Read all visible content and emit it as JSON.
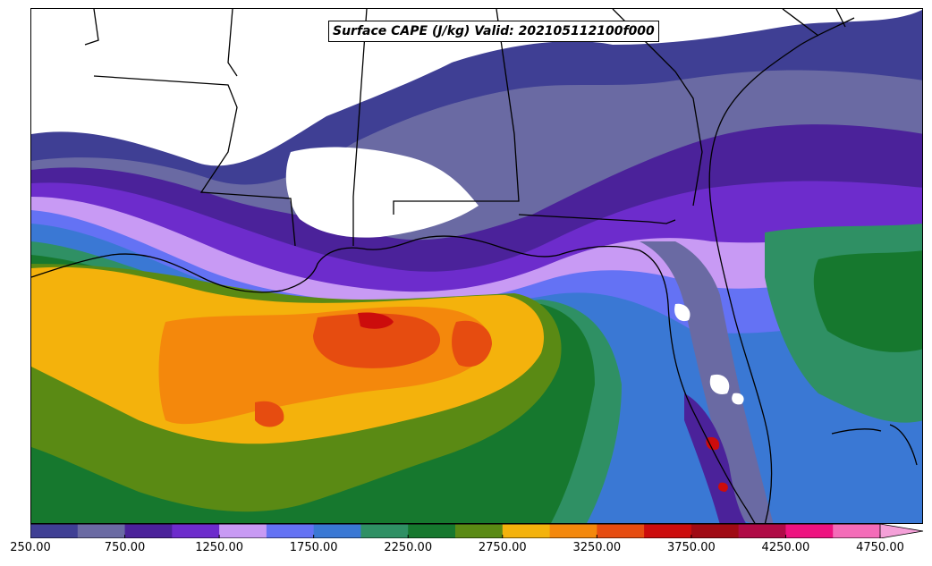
{
  "title": "Surface CAPE (J/kg) Valid: 202105112100f000",
  "colorbar": {
    "levels": [
      250,
      500,
      750,
      1000,
      1250,
      1500,
      1750,
      2000,
      2250,
      2500,
      2750,
      3000,
      3250,
      3500,
      3750,
      4000,
      4250,
      4500,
      4750
    ],
    "colors": [
      "#3f3f94",
      "#6a6aa3",
      "#4b229a",
      "#6d2ccc",
      "#c89af4",
      "#6472f4",
      "#3a78d4",
      "#2f9064",
      "#16782e",
      "#5a8a14",
      "#f4b20c",
      "#f4880c",
      "#e64c10",
      "#cc0c0c",
      "#a00a14",
      "#b00a46",
      "#ee1280",
      "#f46cb8"
    ],
    "extend": "max",
    "extend_color": "#f4a0d8",
    "tick_labels": [
      "250.00",
      "750.00",
      "1250.00",
      "1750.00",
      "2250.00",
      "2750.00",
      "3250.00",
      "3750.00",
      "4250.00",
      "4750.00"
    ]
  }
}
